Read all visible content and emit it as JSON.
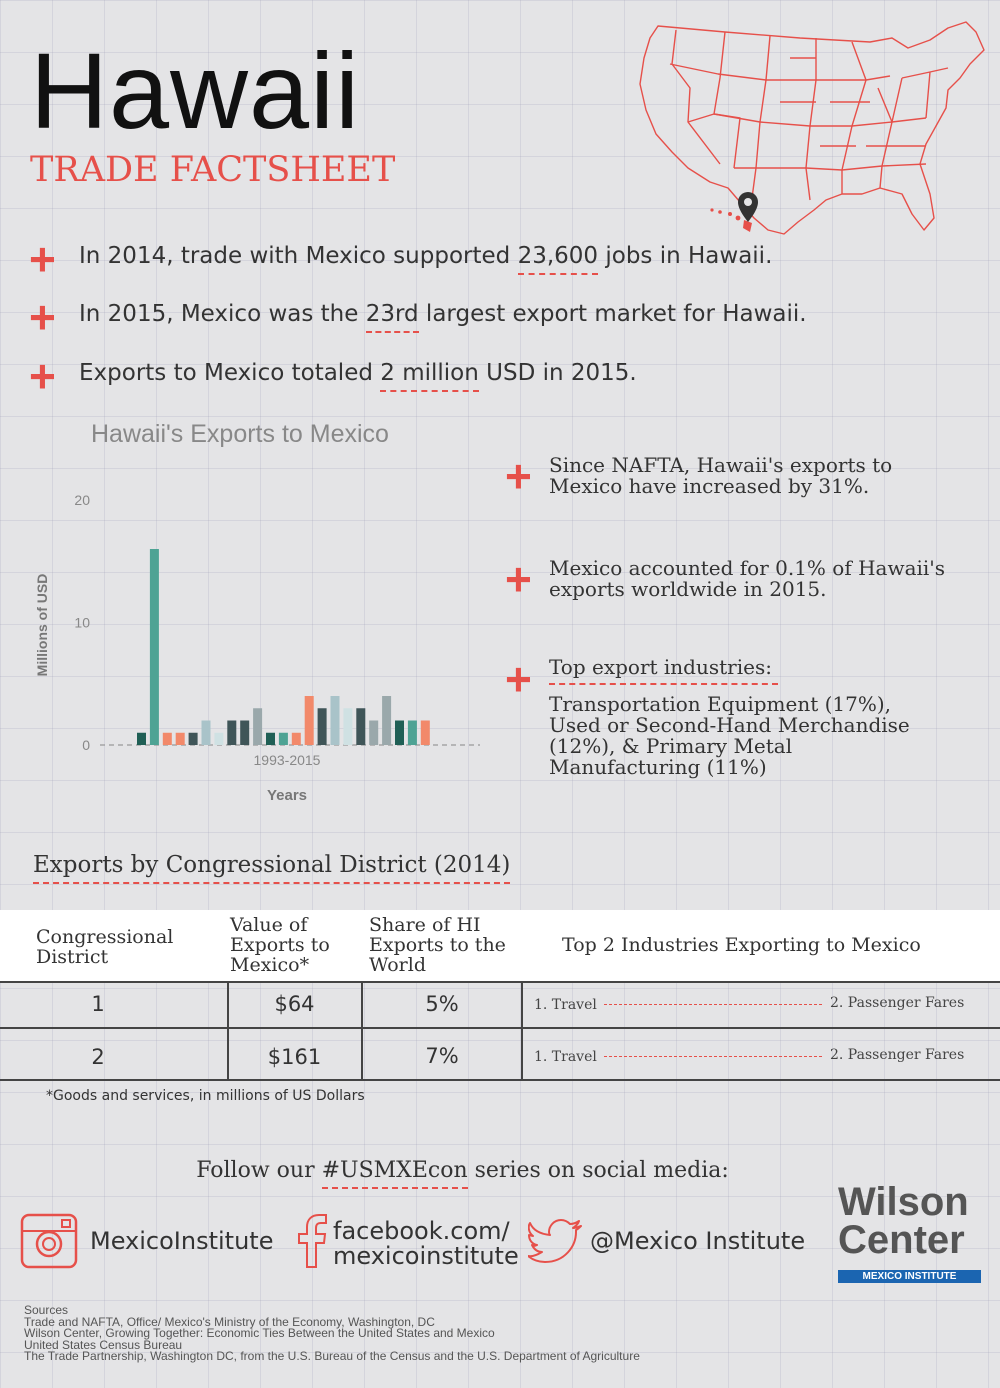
{
  "header": {
    "title": "Hawaii",
    "subtitle": "TRADE FACTSHEET"
  },
  "facts": [
    {
      "before": "In 2014, trade with Mexico supported ",
      "highlight": "23,600",
      "after": " jobs in Hawaii."
    },
    {
      "before": "In 2015, Mexico was the ",
      "highlight": "23rd",
      "after": " largest export market for Hawaii."
    },
    {
      "before": "Exports to Mexico totaled ",
      "highlight": "2 million",
      "after": " USD in 2015."
    }
  ],
  "side_facts": {
    "nafta": "Since NAFTA, Hawaii's exports to Mexico have increased by 31%.",
    "share": "Mexico accounted for 0.1% of Hawaii's exports worldwide in 2015.",
    "industries_heading": "Top export industries:",
    "industries_text": "Transportation Equipment (17%), Used or Second-Hand Merchandise (12%), & Primary Metal Manufacturing (11%)"
  },
  "chart_data": {
    "type": "bar",
    "title": "Hawaii's Exports to Mexico",
    "xlabel": "Years",
    "ylabel": "Millions of USD",
    "x_tick_label": "1993-2015",
    "y_ticks": [
      0,
      10,
      20
    ],
    "ylim": [
      0,
      20
    ],
    "grid": false,
    "values": [
      1,
      16,
      1,
      1,
      1,
      2,
      1,
      2,
      2,
      3,
      1,
      1,
      1,
      4,
      3,
      4,
      3,
      3,
      2,
      4,
      2,
      2,
      2
    ],
    "colors": [
      "#1f5f55",
      "#4ea394",
      "#f2896a",
      "#f2896a",
      "#3f5558",
      "#a9c3c9",
      "#cfe1e3",
      "#3f5558",
      "#3f5558",
      "#9aa8ab",
      "#1f5f55",
      "#4ea394",
      "#f2896a",
      "#f2896a",
      "#3f5558",
      "#a9c3c9",
      "#cfe1e3",
      "#3f5558",
      "#9aa8ab",
      "#9aa8ab",
      "#1f5f55",
      "#4ea394",
      "#f2896a"
    ]
  },
  "districts": {
    "title": "Exports by Congressional District (2014)",
    "headers": {
      "district": "Congressional District",
      "value": "Value of Exports to Mexico*",
      "share": "Share of HI Exports to the World",
      "industries": "Top 2 Industries Exporting to Mexico"
    },
    "rows": [
      {
        "district": "1",
        "value": "$64",
        "share": "5%",
        "ind1": "1. Travel",
        "ind2": "2. Passenger Fares"
      },
      {
        "district": "2",
        "value": "$161",
        "share": "7%",
        "ind1": "1. Travel",
        "ind2": "2. Passenger Fares"
      }
    ],
    "note": "*Goods and services, in millions of US Dollars"
  },
  "social": {
    "follow_before": "Follow our ",
    "follow_tag": "#USMXEcon",
    "follow_after": " series on social media:",
    "instagram": "MexicoInstitute",
    "facebook_line1": "facebook.com/",
    "facebook_line2": "mexicoinstitute",
    "twitter": "@Mexico Institute"
  },
  "logo": {
    "line1": "Wilson",
    "line2": "Center",
    "badge": "MEXICO INSTITUTE"
  },
  "sources": [
    "Sources",
    "Trade and NAFTA, Office/ Mexico's Ministry of the Economy, Washington, DC",
    "Wilson Center, Growing Together: Economic Ties Between the United States and Mexico",
    "United States Census Bureau",
    "The Trade Partnership, Washington DC, from the U.S. Bureau of the Census and the U.S. Department of Agriculture"
  ],
  "colors": {
    "accent": "#e6504a",
    "blue": "#1b65b1"
  }
}
